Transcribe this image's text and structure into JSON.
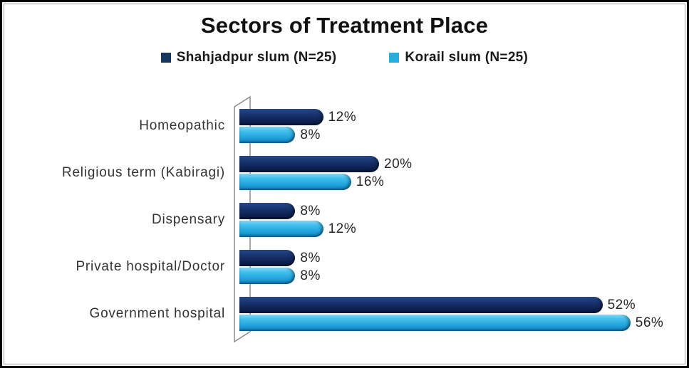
{
  "title": "Sectors of Treatment Place",
  "legend": {
    "items": [
      {
        "label": "Shahjadpur slum (N=25)",
        "color": "#17365d"
      },
      {
        "label": "Korail slum (N=25)",
        "color": "#29abe2"
      }
    ]
  },
  "chart_data": {
    "type": "bar",
    "orientation": "horizontal",
    "bar_style": "3d-cylinder",
    "title": "Sectors of Treatment Place",
    "categories": [
      "Homeopathic",
      "Religious term (Kabiragi)",
      "Dispensary",
      "Private hospital/Doctor",
      "Government hospital"
    ],
    "series": [
      {
        "name": "Shahjadpur slum (N=25)",
        "color": "#17365d",
        "values": [
          12,
          20,
          8,
          8,
          52
        ]
      },
      {
        "name": "Korail slum (N=25)",
        "color": "#29abe2",
        "values": [
          8,
          16,
          12,
          8,
          56
        ]
      }
    ],
    "value_suffix": "%",
    "xlim": [
      0,
      60
    ],
    "grid": false,
    "data_labels": true,
    "legend_position": "top",
    "axis_wall_color": "#8c8c8c"
  }
}
